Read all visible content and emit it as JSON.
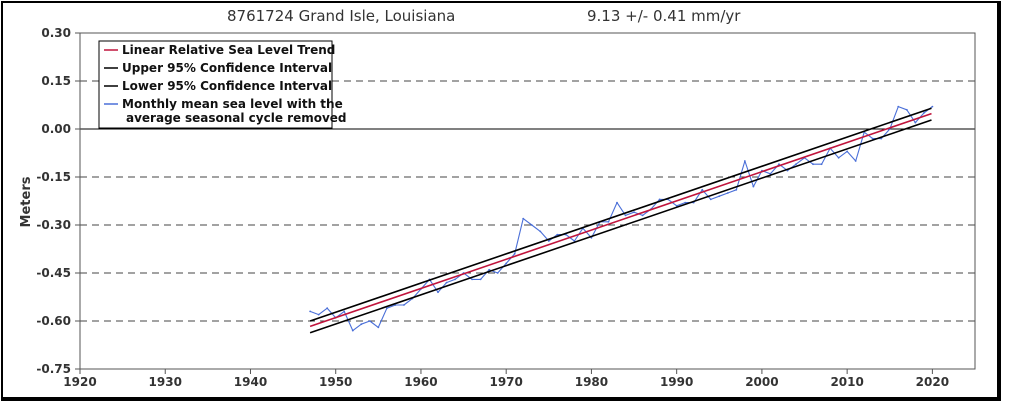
{
  "chart_data": {
    "type": "line",
    "title": "8761724 Grand Isle, Louisiana",
    "subtitle": "9.13 +/-  0.41 mm/yr",
    "xlabel": "",
    "ylabel": "Meters",
    "xlim": [
      1920,
      2025
    ],
    "ylim": [
      -0.75,
      0.3
    ],
    "x_ticks": [
      1920,
      1930,
      1940,
      1950,
      1960,
      1970,
      1980,
      1990,
      2000,
      2010,
      2020
    ],
    "y_ticks": [
      0.3,
      0.15,
      0.0,
      -0.15,
      -0.3,
      -0.45,
      -0.6,
      -0.75
    ],
    "y_tick_labels": [
      "0.30",
      "0.15",
      "0.00",
      "-0.15",
      "-0.30",
      "-0.45",
      "-0.60",
      "-0.75"
    ],
    "grid": "horizontal dashed",
    "legend_position": "top-left",
    "series": [
      {
        "name": "Linear Relative Sea Level Trend",
        "color": "#c0143c",
        "x": [
          1947.0,
          2019.9
        ],
        "y": [
          -0.617,
          0.048
        ]
      },
      {
        "name": "Upper 95% Confidence Interval",
        "color": "#000000",
        "x": [
          1947.0,
          2019.9
        ],
        "y": [
          -0.6,
          0.065
        ]
      },
      {
        "name": "Lower 95% Confidence Interval",
        "color": "#000000",
        "x": [
          1947.0,
          2019.9
        ],
        "y": [
          -0.637,
          0.028
        ]
      },
      {
        "name": "Monthly mean sea level with the average seasonal cycle removed",
        "legend_lines": [
          "Monthly mean sea level with the",
          "average seasonal cycle removed"
        ],
        "color": "#4a6fd8",
        "x": [
          1947,
          1948,
          1949,
          1950,
          1951,
          1952,
          1953,
          1954,
          1955,
          1956,
          1957,
          1958,
          1959,
          1960,
          1961,
          1962,
          1963,
          1964,
          1965,
          1966,
          1967,
          1968,
          1969,
          1970,
          1971,
          1972,
          1973,
          1974,
          1975,
          1976,
          1977,
          1978,
          1979,
          1980,
          1981,
          1982,
          1983,
          1984,
          1985,
          1986,
          1987,
          1988,
          1989,
          1990,
          1991,
          1992,
          1993,
          1994,
          1995,
          1996,
          1997,
          1998,
          1999,
          2000,
          2001,
          2002,
          2003,
          2004,
          2005,
          2006,
          2007,
          2008,
          2009,
          2010,
          2011,
          2012,
          2013,
          2014,
          2015,
          2016,
          2017,
          2018,
          2019,
          2020
        ],
        "y": [
          -0.57,
          -0.58,
          -0.56,
          -0.59,
          -0.57,
          -0.63,
          -0.61,
          -0.6,
          -0.62,
          -0.56,
          -0.55,
          -0.55,
          -0.53,
          -0.5,
          -0.47,
          -0.51,
          -0.48,
          -0.47,
          -0.45,
          -0.47,
          -0.47,
          -0.44,
          -0.45,
          -0.42,
          -0.39,
          -0.28,
          -0.3,
          -0.32,
          -0.35,
          -0.33,
          -0.33,
          -0.35,
          -0.31,
          -0.34,
          -0.29,
          -0.29,
          -0.23,
          -0.27,
          -0.26,
          -0.27,
          -0.25,
          -0.22,
          -0.22,
          -0.24,
          -0.23,
          -0.23,
          -0.19,
          -0.22,
          -0.21,
          -0.2,
          -0.19,
          -0.1,
          -0.18,
          -0.13,
          -0.14,
          -0.11,
          -0.13,
          -0.11,
          -0.09,
          -0.11,
          -0.11,
          -0.06,
          -0.09,
          -0.07,
          -0.1,
          -0.01,
          -0.03,
          -0.03,
          0.0,
          0.07,
          0.06,
          0.02,
          0.05,
          0.07
        ]
      }
    ]
  }
}
